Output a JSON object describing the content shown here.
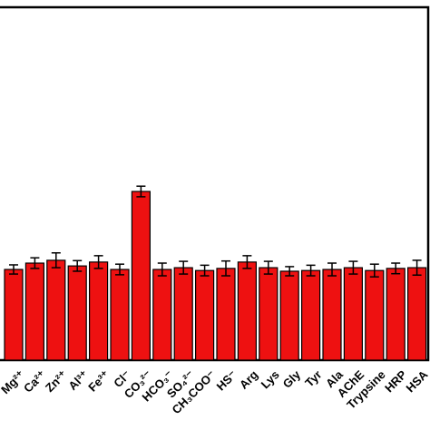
{
  "chart_data": {
    "type": "bar",
    "categories": [
      "Mg²⁺",
      "Ca²⁺",
      "Zn²⁺",
      "Al³⁺",
      "Fe³⁺",
      "Cl⁻",
      "CO₃²⁻",
      "HCO₃⁻",
      "SO₄²⁻",
      "CH₃COO⁻",
      "HS⁻",
      "Arg",
      "Lys",
      "Gly",
      "Tyr",
      "Ala",
      "AChE",
      "Trypsine",
      "HRP",
      "HSA"
    ],
    "values": [
      25.7,
      27.5,
      28.3,
      26.7,
      27.8,
      25.7,
      47.8,
      25.7,
      26.2,
      25.4,
      26.0,
      27.8,
      26.2,
      25.2,
      25.4,
      25.7,
      26.2,
      25.4,
      26.0,
      26.2
    ],
    "errors": [
      1.3,
      1.5,
      2.1,
      1.5,
      1.8,
      1.5,
      1.5,
      1.8,
      1.8,
      1.5,
      2.1,
      1.8,
      1.8,
      1.3,
      1.5,
      1.8,
      1.8,
      1.8,
      1.5,
      2.1
    ],
    "color": "#ee1111",
    "ylim": [
      0,
      100
    ]
  }
}
